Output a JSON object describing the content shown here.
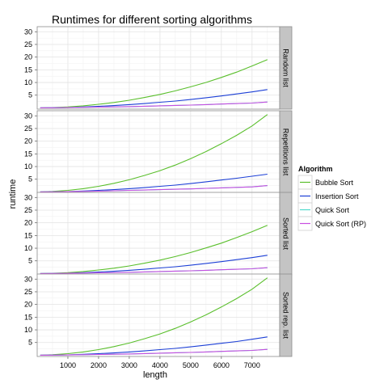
{
  "chart_data": {
    "type": "line",
    "title": "Runtimes for different sorting algorithms",
    "xlabel": "length",
    "ylabel": "runtime",
    "xlim": [
      0,
      7900
    ],
    "ylim": [
      -0.5,
      32
    ],
    "x_ticks": [
      1000,
      2000,
      3000,
      4000,
      5000,
      6000,
      7000
    ],
    "y_ticks": [
      5,
      10,
      15,
      20,
      25,
      30
    ],
    "grid": true,
    "legend": {
      "title": "Algorithm",
      "position": "right",
      "entries": [
        "Bubble Sort",
        "Insertion Sort",
        "Quick Sort",
        "Quick Sort (RP)"
      ]
    },
    "colors": {
      "Bubble Sort": "#5abf2c",
      "Insertion Sort": "#1c3fd6",
      "Quick Sort": "#4fd9cc",
      "Quick Sort (RP)": "#c84ee0"
    },
    "x": [
      100,
      500,
      1000,
      1500,
      2000,
      2500,
      3000,
      3500,
      4000,
      4500,
      5000,
      5500,
      6000,
      6500,
      7000,
      7500
    ],
    "panels": [
      {
        "strip": "Random list",
        "series": [
          {
            "name": "Bubble Sort",
            "values": [
              0.0,
              0.1,
              0.35,
              0.8,
              1.4,
              2.1,
              3.0,
              4.1,
              5.3,
              6.7,
              8.3,
              10.0,
              12.0,
              14.1,
              16.5,
              19.0
            ]
          },
          {
            "name": "Insertion Sort",
            "values": [
              0.0,
              0.05,
              0.15,
              0.35,
              0.6,
              0.9,
              1.3,
              1.7,
              2.2,
              2.7,
              3.3,
              4.0,
              4.7,
              5.5,
              6.3,
              7.2
            ]
          },
          {
            "name": "Quick Sort",
            "values": [
              0.0,
              0.05,
              0.1,
              0.2,
              0.3,
              0.4,
              0.5,
              0.65,
              0.8,
              0.95,
              1.1,
              1.3,
              1.5,
              1.7,
              1.9,
              2.3
            ]
          },
          {
            "name": "Quick Sort (RP)",
            "values": [
              0.0,
              0.05,
              0.1,
              0.2,
              0.3,
              0.4,
              0.5,
              0.65,
              0.8,
              0.95,
              1.1,
              1.3,
              1.5,
              1.7,
              1.9,
              2.3
            ]
          }
        ]
      },
      {
        "strip": "Repetitions list",
        "series": [
          {
            "name": "Bubble Sort",
            "values": [
              0.0,
              0.2,
              0.6,
              1.3,
              2.2,
              3.4,
              4.8,
              6.5,
              8.4,
              10.6,
              13.1,
              15.9,
              19.0,
              22.3,
              26.0,
              30.5
            ]
          },
          {
            "name": "Insertion Sort",
            "values": [
              0.0,
              0.05,
              0.15,
              0.35,
              0.6,
              0.9,
              1.3,
              1.7,
              2.2,
              2.7,
              3.3,
              4.0,
              4.7,
              5.4,
              6.2,
              7.0
            ]
          },
          {
            "name": "Quick Sort",
            "values": [
              0.0,
              0.05,
              0.1,
              0.2,
              0.3,
              0.45,
              0.6,
              0.75,
              0.9,
              1.05,
              1.2,
              1.4,
              1.6,
              1.8,
              2.0,
              2.5
            ]
          },
          {
            "name": "Quick Sort (RP)",
            "values": [
              0.0,
              0.05,
              0.1,
              0.2,
              0.3,
              0.45,
              0.6,
              0.75,
              0.9,
              1.05,
              1.2,
              1.4,
              1.6,
              1.8,
              2.0,
              2.5
            ]
          }
        ]
      },
      {
        "strip": "Sorted list",
        "series": [
          {
            "name": "Bubble Sort",
            "values": [
              0.0,
              0.1,
              0.35,
              0.8,
              1.4,
              2.1,
              3.0,
              4.1,
              5.3,
              6.7,
              8.3,
              10.1,
              12.0,
              14.2,
              16.5,
              19.0
            ]
          },
          {
            "name": "Insertion Sort",
            "values": [
              0.0,
              0.05,
              0.15,
              0.35,
              0.6,
              0.9,
              1.3,
              1.7,
              2.2,
              2.7,
              3.3,
              4.0,
              4.7,
              5.5,
              6.3,
              7.2
            ]
          },
          {
            "name": "Quick Sort",
            "values": [
              0.0,
              0.05,
              0.1,
              0.2,
              0.3,
              0.4,
              0.5,
              0.65,
              0.8,
              0.95,
              1.1,
              1.3,
              1.5,
              1.7,
              1.9,
              2.3
            ]
          },
          {
            "name": "Quick Sort (RP)",
            "values": [
              0.0,
              0.05,
              0.1,
              0.2,
              0.3,
              0.4,
              0.5,
              0.65,
              0.8,
              0.95,
              1.1,
              1.3,
              1.5,
              1.7,
              1.9,
              2.3
            ]
          }
        ]
      },
      {
        "strip": "Sorted rep. list",
        "series": [
          {
            "name": "Bubble Sort",
            "values": [
              0.0,
              0.2,
              0.6,
              1.3,
              2.2,
              3.4,
              4.8,
              6.5,
              8.4,
              10.6,
              13.1,
              15.9,
              19.0,
              22.3,
              26.0,
              30.5
            ]
          },
          {
            "name": "Insertion Sort",
            "values": [
              0.0,
              0.05,
              0.15,
              0.35,
              0.6,
              0.9,
              1.3,
              1.7,
              2.2,
              2.7,
              3.3,
              4.0,
              4.7,
              5.4,
              6.3,
              7.2
            ]
          },
          {
            "name": "Quick Sort",
            "values": [
              0.0,
              0.05,
              0.1,
              0.2,
              0.3,
              0.4,
              0.5,
              0.65,
              0.8,
              0.95,
              1.1,
              1.3,
              1.5,
              1.7,
              1.9,
              2.3
            ]
          },
          {
            "name": "Quick Sort (RP)",
            "values": [
              0.0,
              0.05,
              0.1,
              0.2,
              0.3,
              0.4,
              0.5,
              0.65,
              0.8,
              0.95,
              1.1,
              1.3,
              1.5,
              1.7,
              1.9,
              2.3
            ]
          }
        ]
      }
    ]
  }
}
